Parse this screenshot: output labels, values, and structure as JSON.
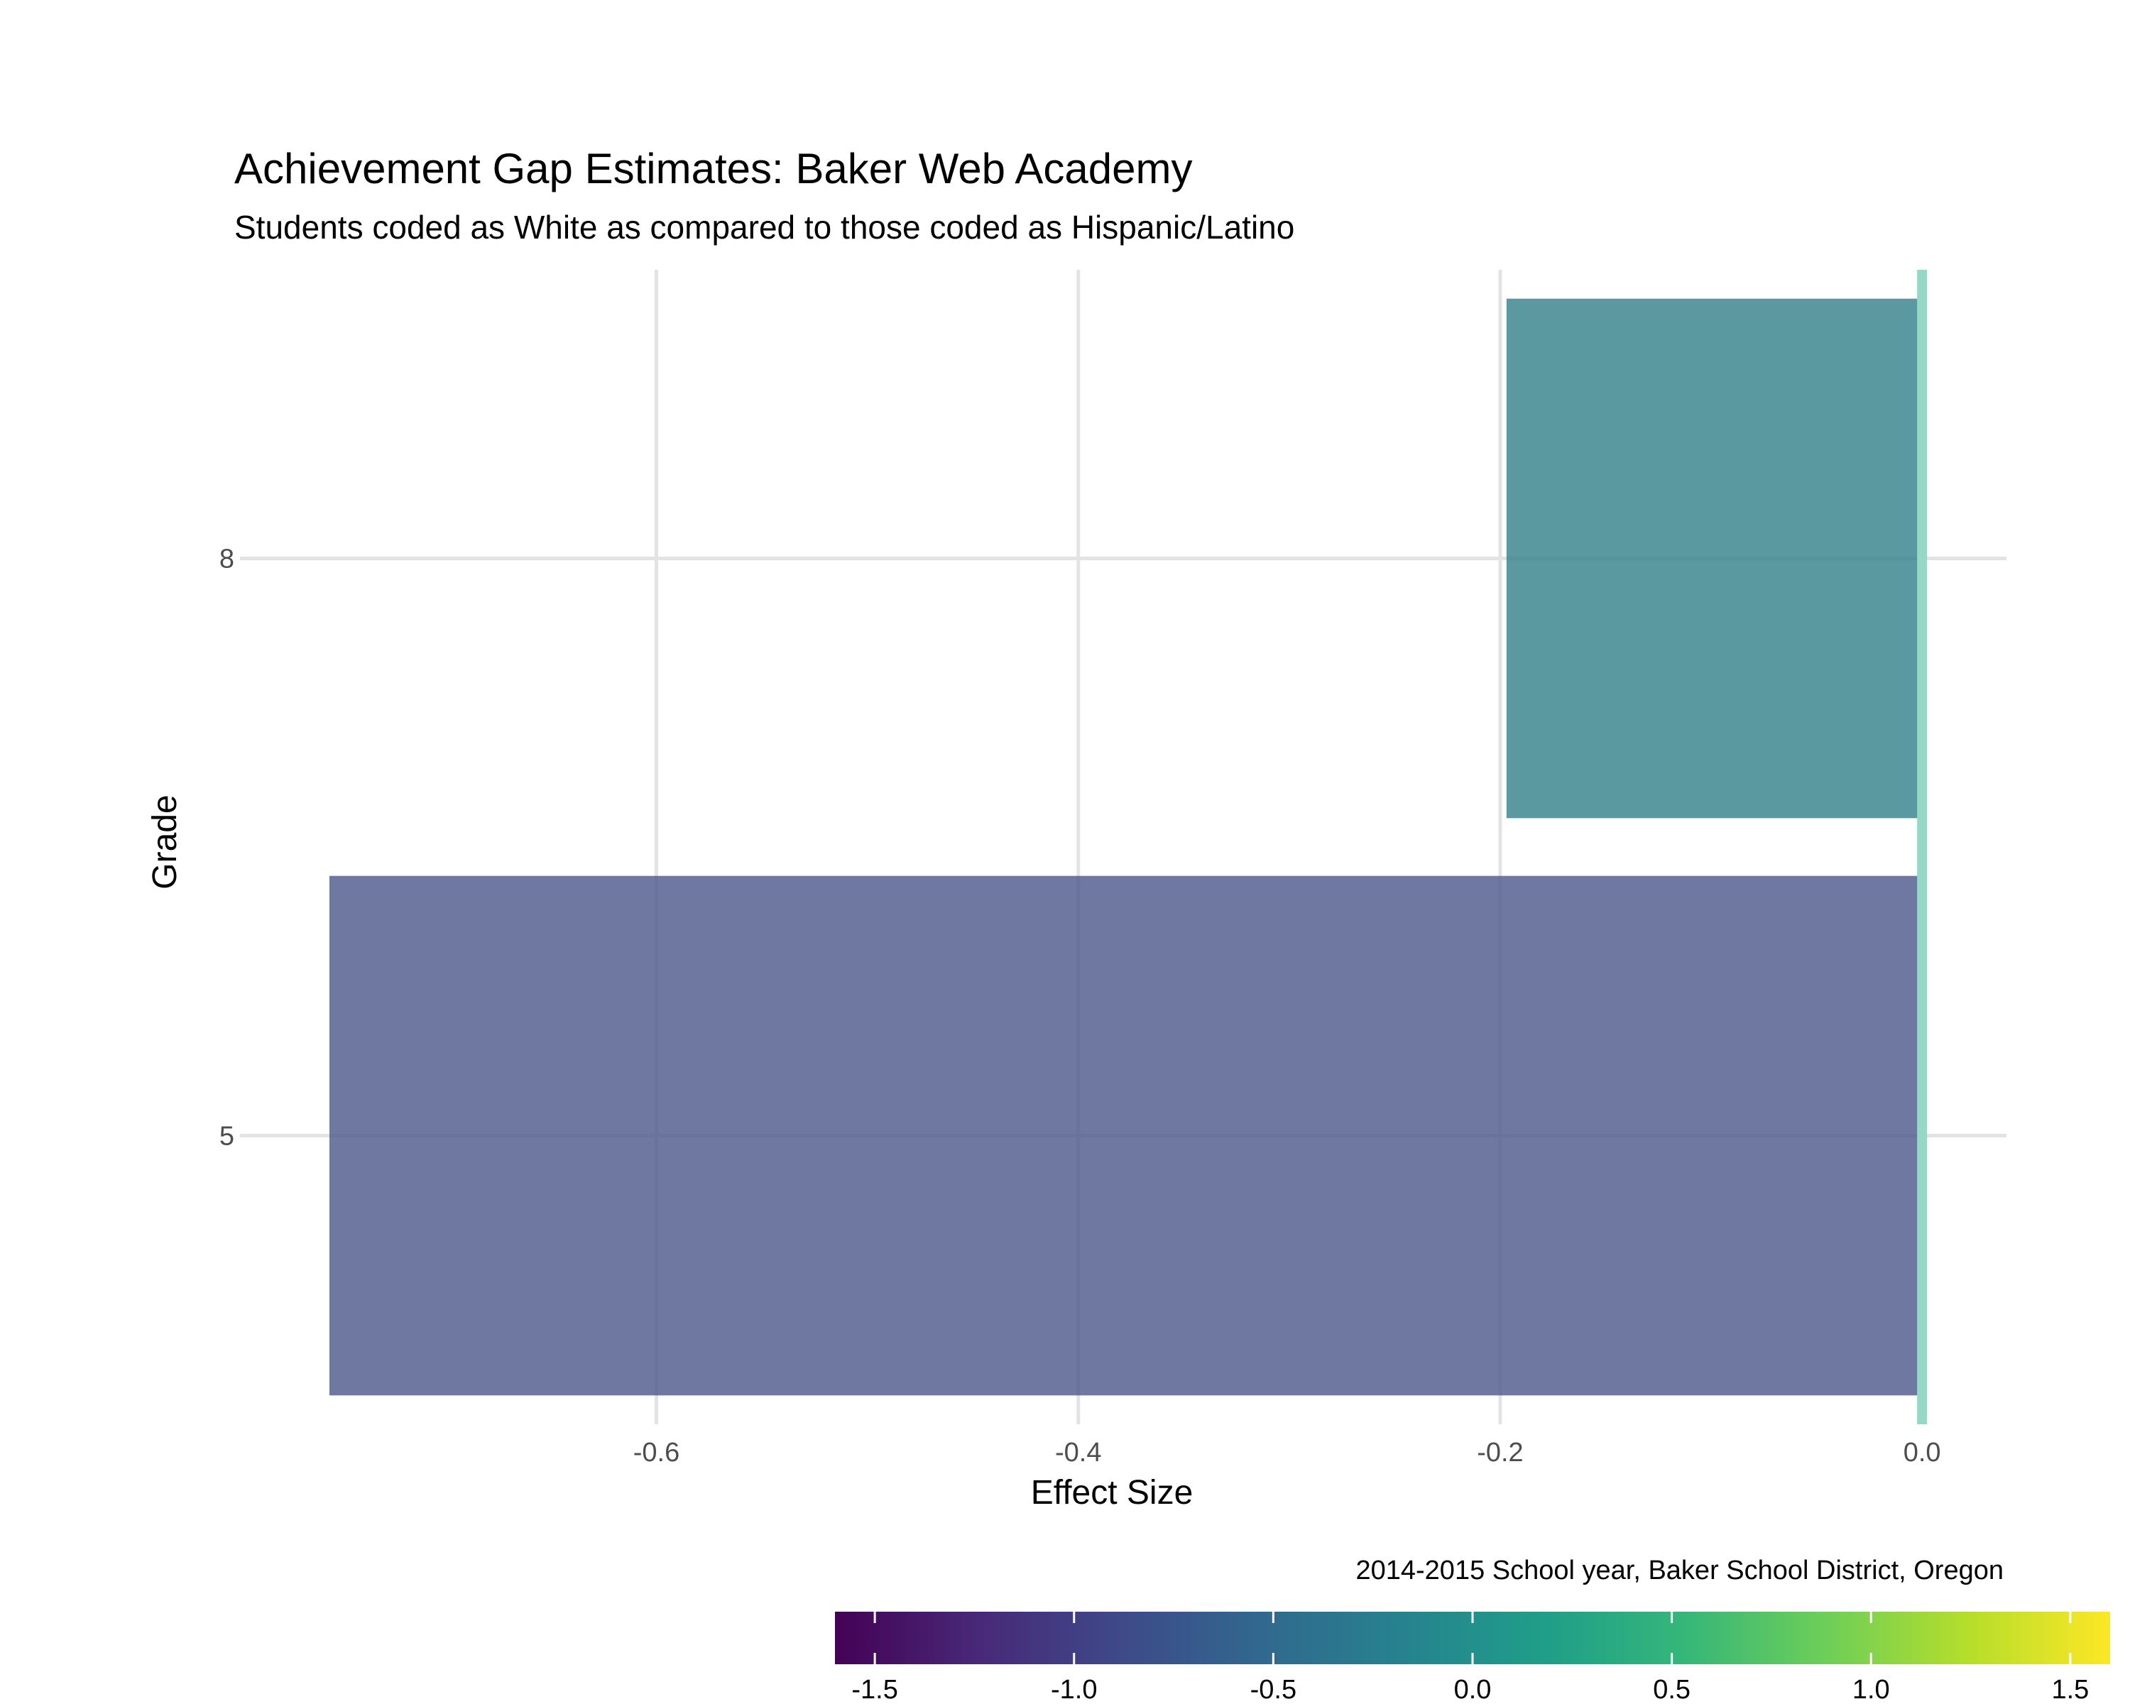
{
  "chart_data": {
    "type": "bar",
    "orientation": "horizontal",
    "title": "Achievement Gap Estimates: Baker Web Academy",
    "subtitle": "Students coded as White as compared to those coded as Hispanic/Latino",
    "xlabel": "Effect Size",
    "ylabel": "Grade",
    "caption": "2014-2015 School year, Baker School District, Oregon",
    "categories": [
      "5",
      "8"
    ],
    "values": [
      -0.755,
      -0.197
    ],
    "xlim": [
      -0.79,
      0.04
    ],
    "x_ticks": [
      -0.6,
      -0.4,
      -0.2,
      0.0
    ],
    "x_tick_labels": [
      "-0.6",
      "-0.4",
      "-0.2",
      "0.0"
    ],
    "grid": true,
    "reference_line": {
      "value": 0,
      "color": "#95d8c5"
    },
    "bar_colors": [
      "#4b5689",
      "#32808a"
    ],
    "colorbar": {
      "placement": "bottom-right",
      "range": [
        -1.6,
        1.6
      ],
      "ticks": [
        -1.5,
        -1.0,
        -0.5,
        0.0,
        0.5,
        1.0,
        1.5
      ],
      "tick_labels": [
        "-1.5",
        "-1.0",
        "-0.5",
        "0.0",
        "0.5",
        "1.0",
        "1.5"
      ],
      "palette": [
        "#440154",
        "#482878",
        "#3e4989",
        "#31688e",
        "#26828e",
        "#1f9e89",
        "#35b779",
        "#6ece58",
        "#b5de2b",
        "#fde725"
      ]
    }
  }
}
